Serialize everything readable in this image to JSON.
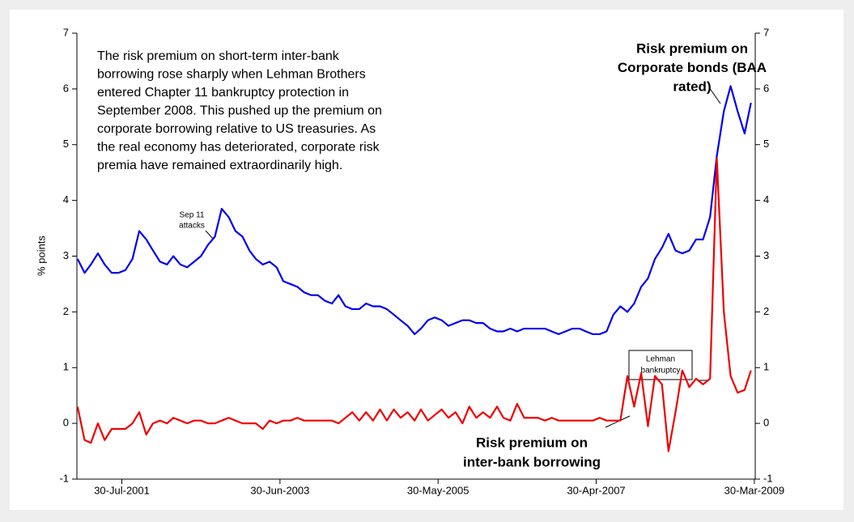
{
  "chart_data": {
    "type": "line",
    "y_label": "% points",
    "x": [
      "2001-01-15",
      "2001-02-15",
      "2001-03-15",
      "2001-04-15",
      "2001-05-15",
      "2001-06-15",
      "2001-07-15",
      "2001-08-15",
      "2001-09-15",
      "2001-10-15",
      "2001-11-15",
      "2001-12-15",
      "2002-01-15",
      "2002-02-15",
      "2002-03-15",
      "2002-04-15",
      "2002-05-15",
      "2002-06-15",
      "2002-07-15",
      "2002-08-15",
      "2002-09-15",
      "2002-10-15",
      "2002-11-15",
      "2002-12-15",
      "2003-01-15",
      "2003-02-15",
      "2003-03-15",
      "2003-04-15",
      "2003-05-15",
      "2003-06-15",
      "2003-07-15",
      "2003-08-15",
      "2003-09-15",
      "2003-10-15",
      "2003-11-15",
      "2003-12-15",
      "2004-01-15",
      "2004-02-15",
      "2004-03-15",
      "2004-04-15",
      "2004-05-15",
      "2004-06-15",
      "2004-07-15",
      "2004-08-15",
      "2004-09-15",
      "2004-10-15",
      "2004-11-15",
      "2004-12-15",
      "2005-01-15",
      "2005-02-15",
      "2005-03-15",
      "2005-04-15",
      "2005-05-15",
      "2005-06-15",
      "2005-07-15",
      "2005-08-15",
      "2005-09-15",
      "2005-10-15",
      "2005-11-15",
      "2005-12-15",
      "2006-01-15",
      "2006-02-15",
      "2006-03-15",
      "2006-04-15",
      "2006-05-15",
      "2006-06-15",
      "2006-07-15",
      "2006-08-15",
      "2006-09-15",
      "2006-10-15",
      "2006-11-15",
      "2006-12-15",
      "2007-01-15",
      "2007-02-15",
      "2007-03-15",
      "2007-04-15",
      "2007-05-15",
      "2007-06-15",
      "2007-07-15",
      "2007-08-15",
      "2007-09-15",
      "2007-10-15",
      "2007-11-15",
      "2007-12-15",
      "2008-01-15",
      "2008-02-15",
      "2008-03-15",
      "2008-04-15",
      "2008-05-15",
      "2008-06-15",
      "2008-07-15",
      "2008-08-15",
      "2008-09-15",
      "2008-10-15",
      "2008-11-15",
      "2008-12-15",
      "2009-01-15",
      "2009-02-15",
      "2009-03-15"
    ],
    "series": [
      {
        "name": "Risk premium on Corporate bonds (BAA rated)",
        "color": "#0000ee",
        "values": [
          2.95,
          2.7,
          2.85,
          3.05,
          2.85,
          2.7,
          2.7,
          2.75,
          2.95,
          3.45,
          3.3,
          3.1,
          2.9,
          2.85,
          3.0,
          2.85,
          2.8,
          2.9,
          3.0,
          3.2,
          3.35,
          3.85,
          3.7,
          3.45,
          3.35,
          3.1,
          2.95,
          2.85,
          2.9,
          2.8,
          2.55,
          2.5,
          2.45,
          2.35,
          2.3,
          2.3,
          2.2,
          2.15,
          2.3,
          2.1,
          2.05,
          2.05,
          2.15,
          2.1,
          2.1,
          2.05,
          1.95,
          1.85,
          1.75,
          1.6,
          1.7,
          1.85,
          1.9,
          1.85,
          1.75,
          1.8,
          1.85,
          1.85,
          1.8,
          1.8,
          1.7,
          1.65,
          1.65,
          1.7,
          1.65,
          1.7,
          1.7,
          1.7,
          1.7,
          1.65,
          1.6,
          1.65,
          1.7,
          1.7,
          1.65,
          1.6,
          1.6,
          1.65,
          1.95,
          2.1,
          2.0,
          2.15,
          2.45,
          2.6,
          2.95,
          3.15,
          3.4,
          3.1,
          3.05,
          3.1,
          3.3,
          3.3,
          3.7,
          4.8,
          5.6,
          6.05,
          5.6,
          5.2,
          5.75
        ]
      },
      {
        "name": "Risk premium on inter-bank borrowing",
        "color": "#ee0000",
        "values": [
          0.3,
          -0.3,
          -0.35,
          0,
          -0.3,
          -0.1,
          -0.1,
          -0.1,
          0,
          0.2,
          -0.2,
          0,
          0.05,
          0,
          0.1,
          0.05,
          0,
          0.05,
          0.05,
          0,
          0,
          0.05,
          0.1,
          0.05,
          0,
          0,
          0,
          -0.1,
          0.05,
          0,
          0.05,
          0.05,
          0.1,
          0.05,
          0.05,
          0.05,
          0.05,
          0.05,
          0,
          0.1,
          0.2,
          0.05,
          0.2,
          0.05,
          0.25,
          0.05,
          0.25,
          0.1,
          0.2,
          0.05,
          0.25,
          0.05,
          0.15,
          0.25,
          0.1,
          0.2,
          0,
          0.3,
          0.1,
          0.2,
          0.1,
          0.3,
          0.1,
          0.05,
          0.35,
          0.1,
          0.1,
          0.1,
          0.05,
          0.1,
          0.05,
          0.05,
          0.05,
          0.05,
          0.05,
          0.05,
          0.1,
          0.05,
          0.05,
          0.05,
          0.85,
          0.3,
          0.9,
          -0.05,
          0.85,
          0.7,
          -0.5,
          0.2,
          0.95,
          0.65,
          0.8,
          0.7,
          0.8,
          4.75,
          2.0,
          0.85,
          0.55,
          0.6,
          0.95
        ]
      }
    ],
    "xlim": [
      "2001-01-12",
      "2009-04-03"
    ],
    "xticks": [
      {
        "value": "2001-07-30",
        "label": "30-Jul-2001"
      },
      {
        "value": "2003-06-30",
        "label": "30-Jun-2003"
      },
      {
        "value": "2005-05-30",
        "label": "30-May-2005"
      },
      {
        "value": "2007-04-30",
        "label": "30-Apr-2007"
      },
      {
        "value": "2009-03-30",
        "label": "30-Mar-2009"
      }
    ],
    "ylim": [
      -1,
      7
    ],
    "yticks": [
      -1,
      0,
      1,
      2,
      3,
      4,
      5,
      6,
      7
    ],
    "y2lim": [
      -1,
      7
    ],
    "y2ticks": [
      -1,
      0,
      1,
      2,
      3,
      4,
      5,
      6,
      7
    ],
    "annotations": [
      {
        "lines": [
          "The risk premium on short-term inter-bank",
          "borrowing rose sharply when Lehman Brothers",
          "entered Chapter 11 bankruptcy protection in",
          "September 2008. This pushed up the premium on",
          "corporate borrowing relative to US treasuries. As",
          "the real economy has deteriorated, corporate risk",
          "premia have remained extraordinarily high."
        ]
      },
      {
        "lines": [
          "Risk premium on",
          "Corporate bonds (BAA",
          "rated)"
        ]
      },
      {
        "lines": [
          "Risk premium on",
          "inter-bank borrowing"
        ]
      },
      {
        "lines": [
          "Sep 11",
          "attacks"
        ]
      },
      {
        "lines": [
          "Lehman",
          "bankruptcy"
        ]
      }
    ]
  }
}
